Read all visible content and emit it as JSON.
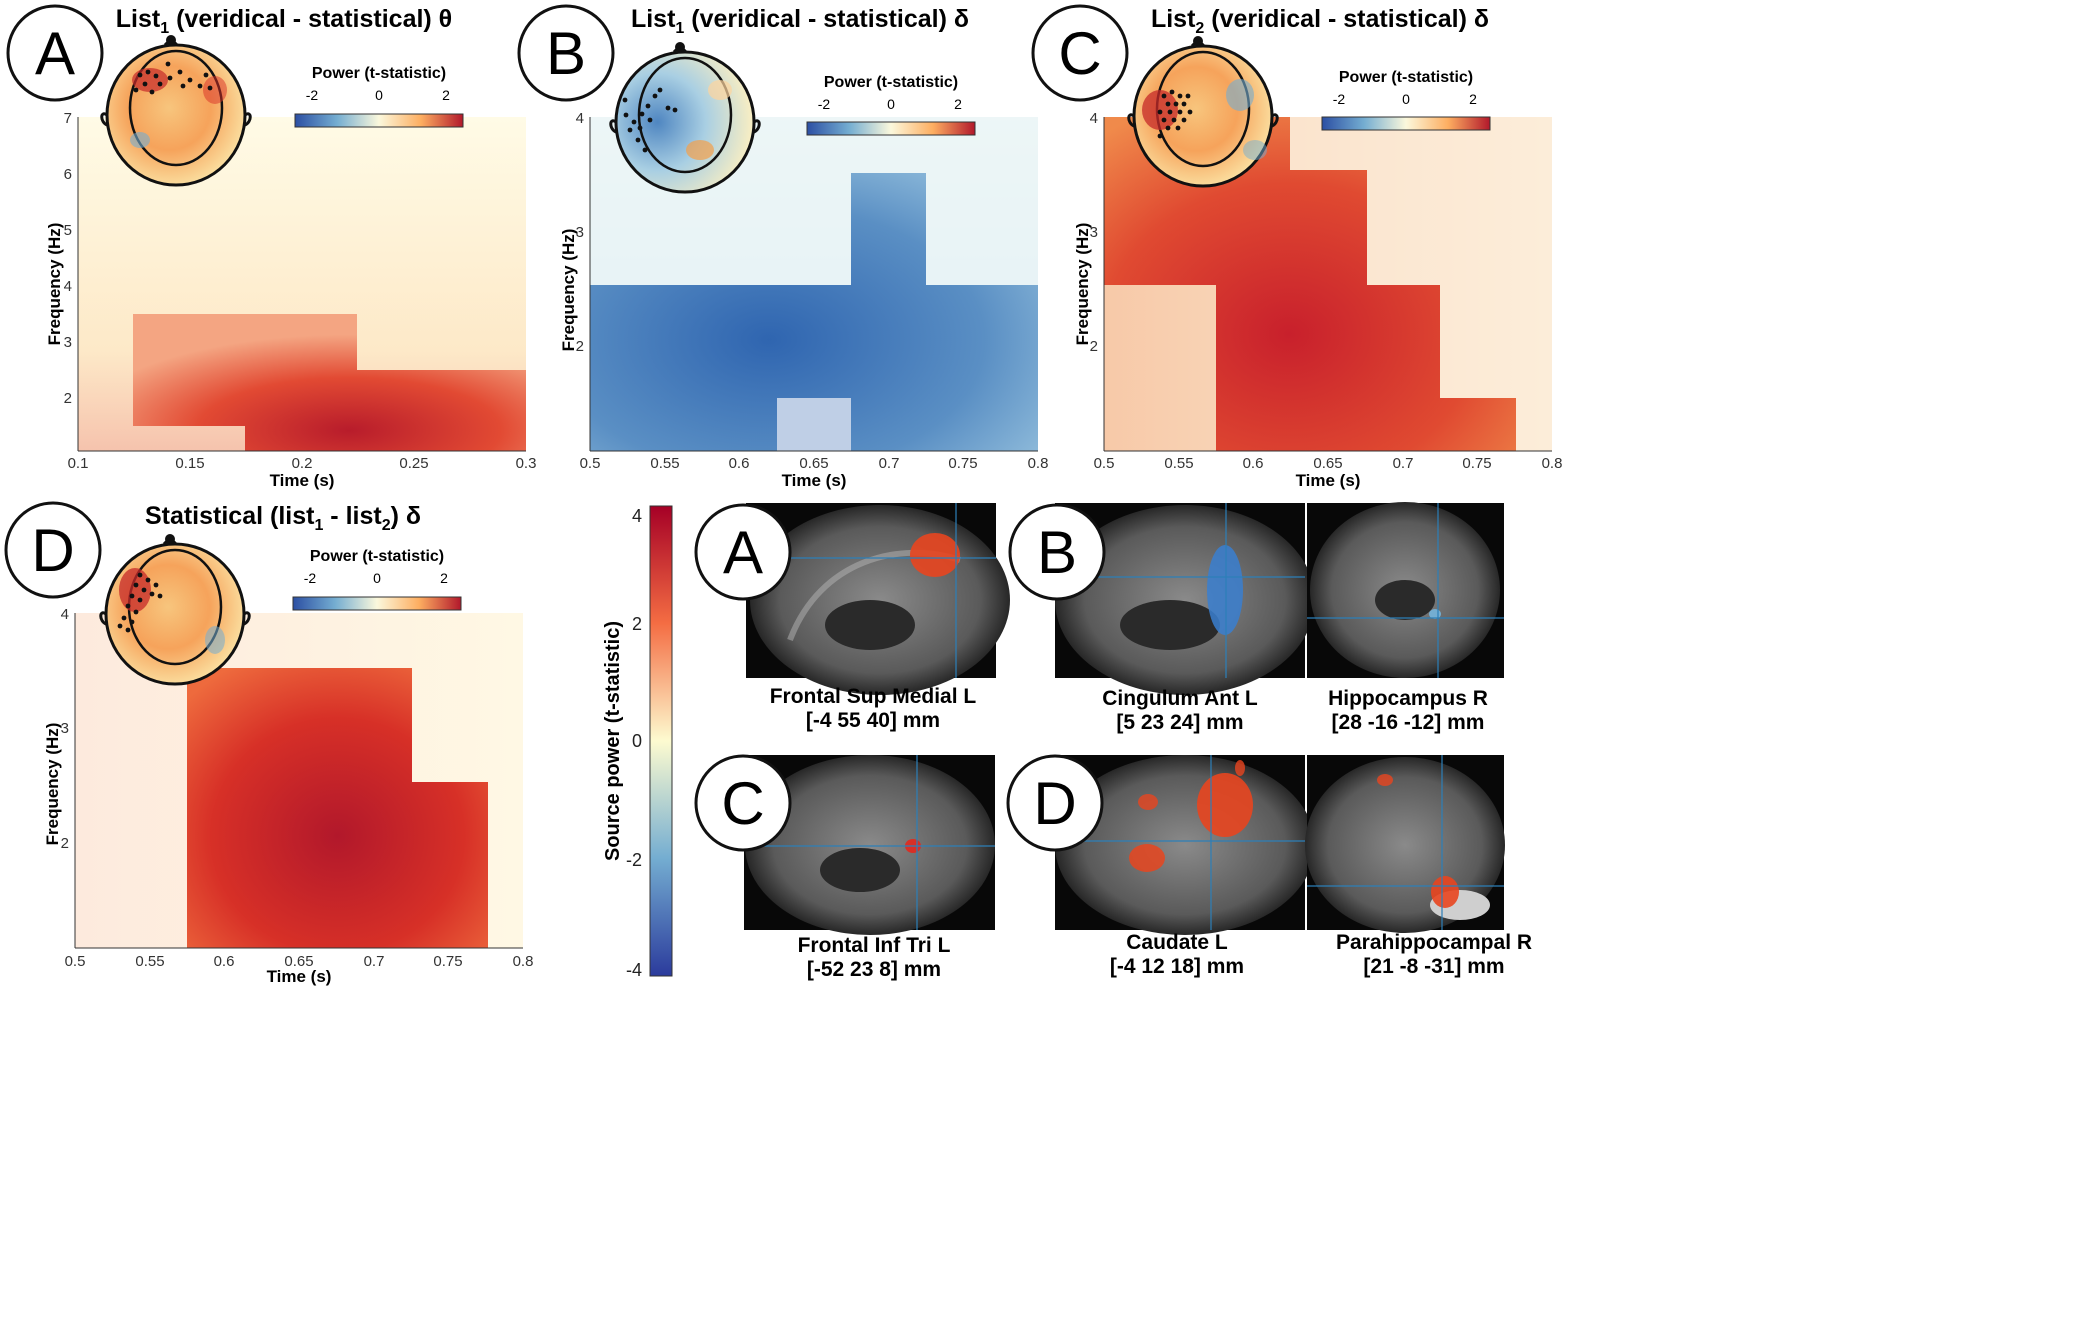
{
  "panels": {
    "A": {
      "letter": "A",
      "title_pre": "List",
      "title_sub": "1",
      "title_post": " (veridical - statistical) θ",
      "ylabel": "Frequency (Hz)",
      "xlabel": "Time (s)",
      "xticks": [
        "0.1",
        "0.15",
        "0.2",
        "0.25",
        "0.3"
      ],
      "yticks": [
        "7",
        "6",
        "5",
        "4",
        "3",
        "2"
      ],
      "colorbar": {
        "title": "Power (t-statistic)",
        "ticks": [
          "-2",
          "0",
          "2"
        ]
      }
    },
    "B": {
      "letter": "B",
      "title_pre": "List",
      "title_sub": "1",
      "title_post": " (veridical - statistical)  δ",
      "ylabel": "Frequency (Hz)",
      "xlabel": "Time (s)",
      "xticks": [
        "0.5",
        "0.55",
        "0.6",
        "0.65",
        "0.7",
        "0.75",
        "0.8"
      ],
      "yticks": [
        "4",
        "3",
        "2"
      ],
      "colorbar": {
        "title": "Power (t-statistic)",
        "ticks": [
          "-2",
          "0",
          "2"
        ]
      }
    },
    "C": {
      "letter": "C",
      "title_pre": "List",
      "title_sub": "2",
      "title_post": " (veridical - statistical)  δ",
      "ylabel": "Frequency (Hz)",
      "xlabel": "Time (s)",
      "xticks": [
        "0.5",
        "0.55",
        "0.6",
        "0.65",
        "0.7",
        "0.75",
        "0.8"
      ],
      "yticks": [
        "4",
        "3",
        "2"
      ],
      "colorbar": {
        "title": "Power (t-statistic)",
        "ticks": [
          "-2",
          "0",
          "2"
        ]
      }
    },
    "D": {
      "letter": "D",
      "title_pre": "Statistical (list",
      "title_sub1": "1",
      "title_mid": " - list",
      "title_sub2": "2",
      "title_post": ")  δ",
      "ylabel": "Frequency (Hz)",
      "xlabel": "Time (s)",
      "xticks": [
        "0.5",
        "0.55",
        "0.6",
        "0.65",
        "0.7",
        "0.75",
        "0.8"
      ],
      "yticks": [
        "4",
        "3",
        "2"
      ],
      "colorbar": {
        "title": "Power (t-statistic)",
        "ticks": [
          "-2",
          "0",
          "2"
        ]
      }
    }
  },
  "source": {
    "colorbar_label": "Source power (t-statistic)",
    "ticks": [
      "4",
      "2",
      "0",
      "-2",
      "-4"
    ],
    "items": [
      {
        "letter": "A",
        "name": "Frontal Sup Medial L",
        "coords": "[-4 55 40] mm"
      },
      {
        "letter": "B",
        "name": "Cingulum Ant L",
        "coords": "[5 23 24] mm"
      },
      {
        "letter": "",
        "name": "Hippocampus R",
        "coords": "[28 -16 -12] mm"
      },
      {
        "letter": "C",
        "name": "Frontal Inf Tri L",
        "coords": "[-52 23 8] mm"
      },
      {
        "letter": "D",
        "name": "Caudate L",
        "coords": "[-4 12 18] mm"
      },
      {
        "letter": "",
        "name": "Parahippocampal R",
        "coords": "[21 -8 -31] mm"
      }
    ]
  },
  "colors": {
    "red": "#b2182b",
    "orange": "#f4a04a",
    "yellow": "#fdf4c4",
    "lightblue": "#c7e0ee",
    "blue": "#2c64ae",
    "dark": "#3a3a3a"
  }
}
